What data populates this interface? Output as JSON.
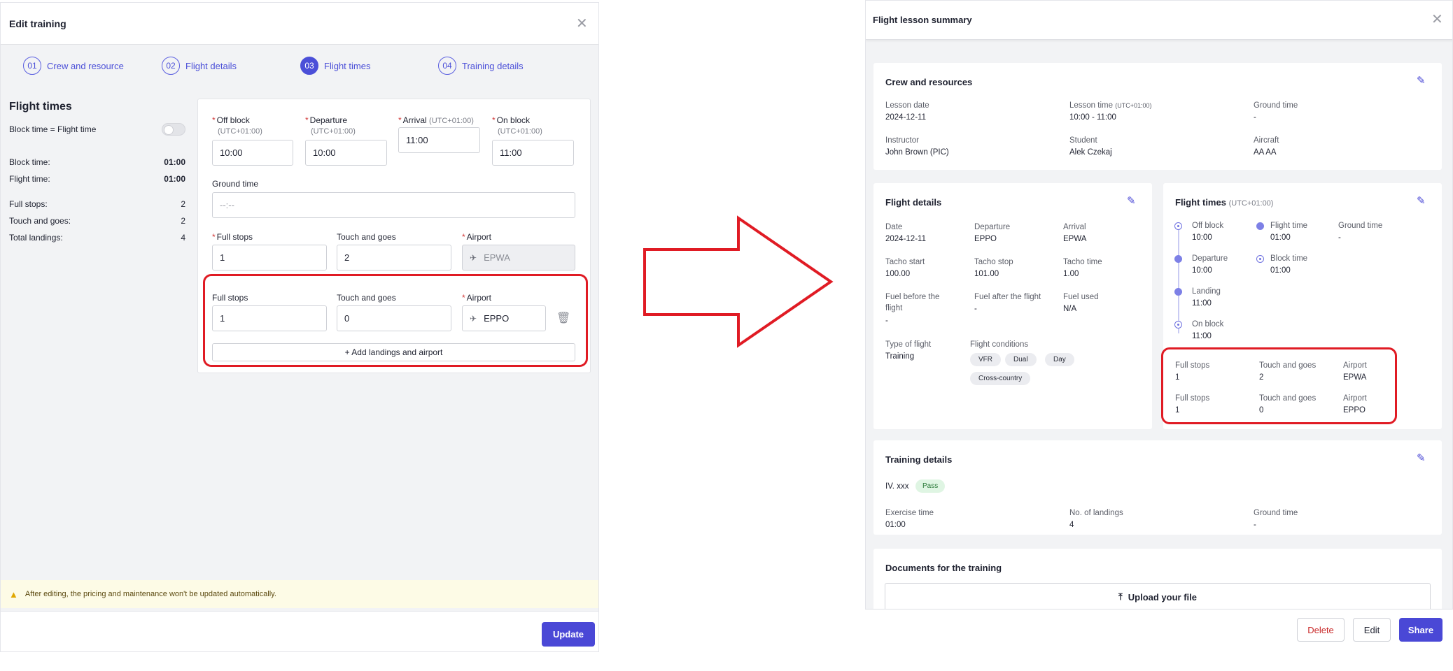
{
  "edit_training": {
    "title": "Edit training",
    "steps": [
      {
        "num": "01",
        "label": "Crew and resource"
      },
      {
        "num": "02",
        "label": "Flight details"
      },
      {
        "num": "03",
        "label": "Flight times"
      },
      {
        "num": "04",
        "label": "Training details"
      }
    ],
    "active_step": 3,
    "sidebar": {
      "heading": "Flight times",
      "toggle_label": "Block time = Flight time",
      "toggle_on": false,
      "block_time_label": "Block time:",
      "block_time_value": "01:00",
      "flight_time_label": "Flight time:",
      "flight_time_value": "01:00",
      "full_stops_label": "Full stops:",
      "full_stops_value": "2",
      "touch_goes_label": "Touch and goes:",
      "touch_goes_value": "2",
      "total_landings_label": "Total landings:",
      "total_landings_value": "4"
    },
    "form": {
      "off_block_label": "Off block",
      "off_block_tz": "(UTC+01:00)",
      "off_block_value": "10:00",
      "departure_label": "Departure",
      "departure_tz": "(UTC+01:00)",
      "departure_value": "10:00",
      "arrival_label": "Arrival",
      "arrival_tz": "(UTC+01:00)",
      "arrival_value": "11:00",
      "on_block_label": "On block",
      "on_block_tz": "(UTC+01:00)",
      "on_block_value": "11:00",
      "ground_time_label": "Ground time",
      "ground_time_placeholder": "--:--",
      "landings": [
        {
          "full_stops_label": "Full stops",
          "full_stops": "1",
          "touch_label": "Touch and goes",
          "touch": "2",
          "airport_label": "Airport",
          "airport": "EPWA"
        },
        {
          "full_stops_label": "Full stops",
          "full_stops": "1",
          "touch_label": "Touch and goes",
          "touch": "0",
          "airport_label": "Airport",
          "airport": "EPPO"
        }
      ],
      "add_button": "+ Add landings and airport"
    },
    "warning": "After editing, the pricing and maintenance won't be updated automatically.",
    "update_button": "Update"
  },
  "summary": {
    "title": "Flight lesson summary",
    "crew": {
      "title": "Crew and resources",
      "lesson_date_label": "Lesson date",
      "lesson_date": "2024-12-11",
      "lesson_time_label": "Lesson time",
      "lesson_time_tz": "(UTC+01:00)",
      "lesson_time": "10:00 - 11:00",
      "ground_time_label": "Ground time",
      "ground_time": "-",
      "instructor_label": "Instructor",
      "instructor": "John Brown (PIC)",
      "student_label": "Student",
      "student": "Alek Czekaj",
      "aircraft_label": "Aircraft",
      "aircraft": "AA AA"
    },
    "flight_details": {
      "title": "Flight details",
      "date_label": "Date",
      "date": "2024-12-11",
      "departure_label": "Departure",
      "departure": "EPPO",
      "arrival_label": "Arrival",
      "arrival": "EPWA",
      "tacho_start_label": "Tacho start",
      "tacho_start": "100.00",
      "tacho_stop_label": "Tacho stop",
      "tacho_stop": "101.00",
      "tacho_time_label": "Tacho time",
      "tacho_time": "1.00",
      "fuel_before_label_1": "Fuel before the",
      "fuel_before_label_2": "flight",
      "fuel_before": "-",
      "fuel_after_label": "Fuel after the flight",
      "fuel_after": "-",
      "fuel_used_label": "Fuel used",
      "fuel_used": "N/A",
      "type_label": "Type of flight",
      "type": "Training",
      "conditions_label": "Flight conditions",
      "conditions": [
        "VFR",
        "Dual",
        "Day",
        "Cross-country"
      ]
    },
    "flight_times": {
      "title": "Flight times",
      "tz": "(UTC+01:00)",
      "off_block_label": "Off block",
      "off_block": "10:00",
      "departure_label": "Departure",
      "departure": "10:00",
      "landing_label": "Landing",
      "landing": "11:00",
      "on_block_label": "On block",
      "on_block": "11:00",
      "flight_time_label": "Flight time",
      "flight_time": "01:00",
      "block_time_label": "Block time",
      "block_time": "01:00",
      "ground_time_label": "Ground time",
      "ground_time": "-",
      "landings": [
        {
          "full_stops_label": "Full stops",
          "full_stops": "1",
          "touch_label": "Touch and goes",
          "touch": "2",
          "airport_label": "Airport",
          "airport": "EPWA"
        },
        {
          "full_stops_label": "Full stops",
          "full_stops": "1",
          "touch_label": "Touch and goes",
          "touch": "0",
          "airport_label": "Airport",
          "airport": "EPPO"
        }
      ]
    },
    "training": {
      "title": "Training details",
      "exercise": "IV. xxx",
      "result": "Pass",
      "exercise_time_label": "Exercise time",
      "exercise_time": "01:00",
      "landings_label": "No. of landings",
      "landings": "4",
      "ground_time_label": "Ground time",
      "ground_time": "-"
    },
    "documents": {
      "title": "Documents for the training",
      "upload": "Upload your file"
    },
    "buttons": {
      "delete": "Delete",
      "edit": "Edit",
      "share": "Share"
    }
  },
  "colors": {
    "accent": "#4a48d6",
    "highlight": "#e01b24",
    "arrow": "#e01b24"
  }
}
